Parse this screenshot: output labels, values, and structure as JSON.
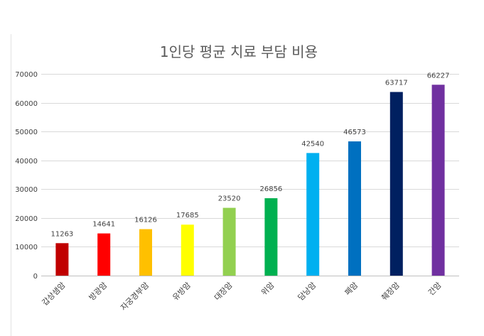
{
  "chart_data": {
    "type": "bar",
    "title": "1인당 평균 치료 부담 비용",
    "xlabel": "",
    "ylabel": "",
    "ylim": [
      0,
      70000
    ],
    "yticks": [
      0,
      10000,
      20000,
      30000,
      40000,
      50000,
      60000,
      70000
    ],
    "grid": true,
    "legend": "none",
    "categories": [
      "갑상샘암",
      "방광암",
      "자궁경부암",
      "유방암",
      "대장암",
      "위암",
      "담낭암",
      "폐암",
      "췌장암",
      "간암"
    ],
    "values": [
      11263,
      14641,
      16126,
      17685,
      23520,
      26856,
      42540,
      46573,
      63717,
      66227
    ],
    "colors": [
      "#C00000",
      "#FF0000",
      "#FFC000",
      "#FFFF00",
      "#92D050",
      "#00B050",
      "#00B0F0",
      "#0070C0",
      "#002060",
      "#7030A0"
    ]
  }
}
